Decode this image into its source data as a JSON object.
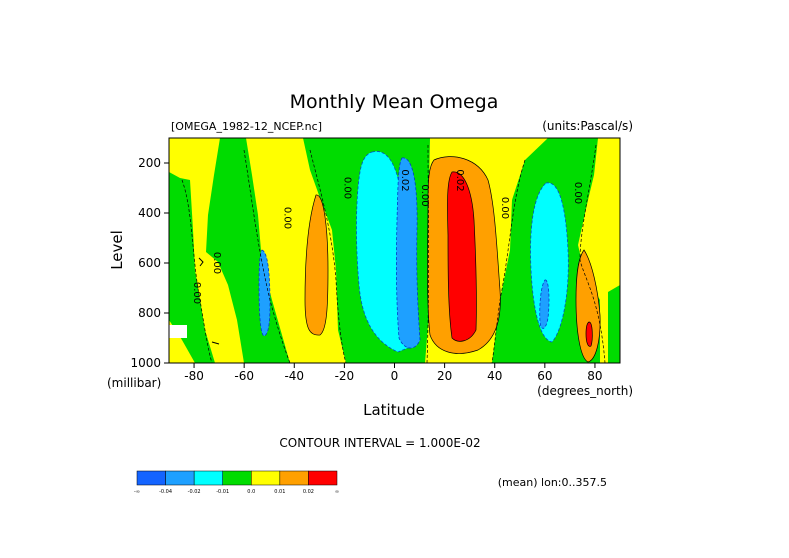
{
  "chart_data": {
    "type": "heatmap",
    "title": "Monthly Mean Omega",
    "subtitle_left": "[OMEGA_1982-12_NCEP.nc]",
    "subtitle_right": "(units:Pascal/s)",
    "xlabel": "Latitude",
    "x_units": "(degrees_north)",
    "ylabel": "Level",
    "y_units": "(millibar)",
    "xlim": [
      -90,
      90
    ],
    "ylim": [
      1000,
      100
    ],
    "x_ticks": [
      -80,
      -60,
      -40,
      -20,
      0,
      20,
      40,
      60,
      80
    ],
    "x_tick_labels": [
      "-80",
      "-60",
      "-40",
      "-20",
      "0",
      "20",
      "40",
      "60",
      "80"
    ],
    "y_ticks": [
      200,
      400,
      600,
      800,
      1000
    ],
    "y_tick_labels": [
      "200",
      "400",
      "600",
      "800",
      "1000"
    ],
    "contour_interval_text": "CONTOUR INTERVAL = 1.000E-02",
    "footer_right": "(mean) lon:0..357.5",
    "contour_labels": [
      {
        "text": "0.00",
        "lat": -80,
        "lev": 720
      },
      {
        "text": "0.00",
        "lat": -72,
        "lev": 600
      },
      {
        "text": "0.00",
        "lat": -44,
        "lev": 420
      },
      {
        "text": "0.00",
        "lat": -20,
        "lev": 300
      },
      {
        "text": "0.02",
        "lat": 3,
        "lev": 270
      },
      {
        "text": "0.00",
        "lat": 11,
        "lev": 330
      },
      {
        "text": "0.02",
        "lat": 25,
        "lev": 270
      },
      {
        "text": "0.00",
        "lat": 43,
        "lev": 380
      },
      {
        "text": "0.00",
        "lat": 72,
        "lev": 320
      }
    ],
    "colorbar": {
      "colors": [
        "#1464ff",
        "#1ea0ff",
        "#00ffff",
        "#00dc00",
        "#ffff00",
        "#ffa000",
        "#ff0000"
      ],
      "labels": [
        "-∞",
        "-0.04",
        "-0.02",
        "-0.01",
        "0.0",
        "0.01",
        "0.02",
        "∞"
      ]
    },
    "regions": [
      {
        "level": "positive_low",
        "color": "#ffff00",
        "type": "background"
      },
      {
        "level": "near_zero_negative",
        "color": "#00dc00",
        "lat_range": [
          -72,
          -58
        ]
      },
      {
        "level": "near_zero_negative",
        "color": "#00dc00",
        "lat_range": [
          -32,
          12
        ]
      },
      {
        "level": "near_zero_negative",
        "color": "#00dc00",
        "lat_range": [
          42,
          72
        ]
      },
      {
        "level": "negative",
        "color": "#00ffff",
        "lat_range": [
          -5,
          12
        ]
      },
      {
        "level": "negative",
        "color": "#00ffff",
        "lat_range": [
          53,
          66
        ]
      },
      {
        "level": "strongly_negative",
        "color": "#1ea0ff",
        "lat_range": [
          -54,
          -50
        ]
      },
      {
        "level": "strongly_negative",
        "color": "#1ea0ff",
        "lat_range": [
          3,
          8
        ]
      },
      {
        "level": "positive",
        "color": "#ffa000",
        "lat_range": [
          -35,
          -27
        ]
      },
      {
        "level": "positive",
        "color": "#ffa000",
        "lat_range": [
          12,
          34
        ]
      },
      {
        "level": "strongly_positive",
        "color": "#ff0000",
        "lat_range": [
          19,
          28
        ]
      }
    ]
  }
}
